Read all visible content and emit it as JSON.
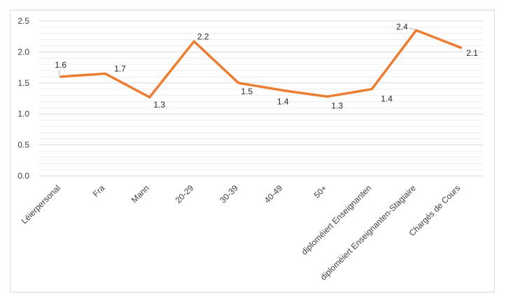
{
  "chart_data": {
    "type": "line",
    "title": "",
    "xlabel": "",
    "ylabel": "",
    "ylim": [
      0,
      2.5
    ],
    "yticks": [
      "0.0",
      "0.5",
      "1.0",
      "1.5",
      "2.0",
      "2.5"
    ],
    "grid": true,
    "categories": [
      "Léierpersonal",
      "Fra",
      "Mann",
      "20-29",
      "30-39",
      "40-49",
      "50+",
      "diploméiert Enseignanten",
      "diploméiert Enseignanten-Stagiaire",
      "Chargés de Cours"
    ],
    "values": [
      1.6,
      1.65,
      1.27,
      2.17,
      1.5,
      1.38,
      1.28,
      1.4,
      2.35,
      2.07
    ],
    "data_labels": [
      "1.6",
      "1.7",
      "1.3",
      "2.2",
      "1.5",
      "1.4",
      "1.3",
      "1.4",
      "2.4",
      "2.1"
    ],
    "series_color": "#ed7d31",
    "grid_color": "#d9d9d9"
  }
}
